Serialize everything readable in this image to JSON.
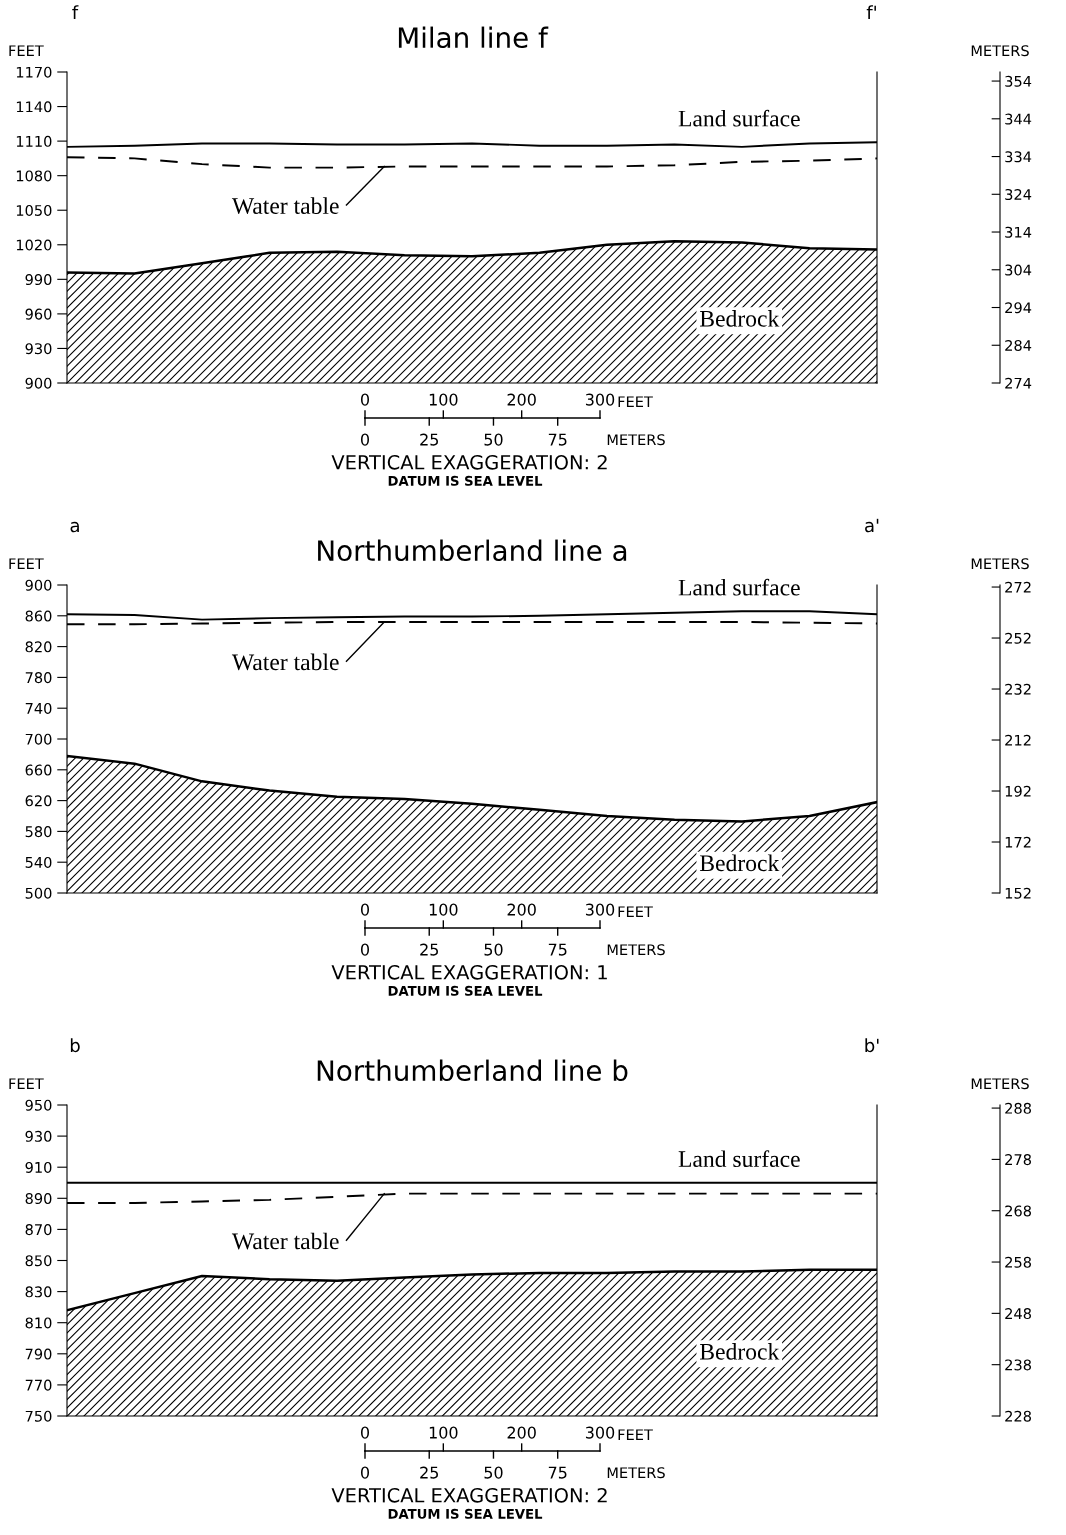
{
  "chart_data": [
    {
      "type": "line",
      "title": "Milan line f",
      "ylabel": "FEET",
      "y2label": "METERS",
      "categories": [
        null,
        null,
        null,
        null,
        null,
        null,
        null,
        null,
        null,
        null,
        null,
        null,
        null
      ],
      "series": [
        {
          "name": "Land surface",
          "type": "line",
          "color": "#000000",
          "line_style": "solid",
          "values": [
            1105,
            1106,
            1108,
            1108,
            1107,
            1107,
            1108,
            1106,
            1106,
            1107,
            1105,
            1108,
            1109
          ]
        },
        {
          "name": "Water table",
          "type": "line",
          "color": "#000000",
          "line_style": "dashed",
          "values": [
            1096,
            1095,
            1090,
            1087,
            1087,
            1088,
            1088,
            1088,
            1088,
            1089,
            1092,
            1093,
            1095
          ]
        },
        {
          "name": "Bedrock",
          "type": "area",
          "color": "#000000",
          "values": [
            996,
            995,
            1004,
            1013,
            1014,
            1011,
            1010,
            1013,
            1020,
            1023,
            1022,
            1017,
            1016
          ]
        }
      ],
      "ylim": [
        900,
        1170
      ],
      "yticks": [
        900,
        930,
        960,
        990,
        1020,
        1050,
        1080,
        1110,
        1140,
        1170
      ],
      "y2lim": [
        274,
        356.4
      ],
      "y2ticks": [
        274,
        284,
        294,
        304,
        314,
        324,
        334,
        344,
        354
      ],
      "annotations": [
        "f",
        "f'",
        "0",
        "100",
        "200",
        "300",
        "FEET",
        "0",
        "25",
        "50",
        "75",
        "METERS",
        "VERTICAL EXAGGERATION: 2",
        "DATUM IS SEA LEVEL"
      ]
    },
    {
      "type": "line",
      "title": "Northumberland line a",
      "ylabel": "FEET",
      "y2label": "METERS",
      "categories": [
        null,
        null,
        null,
        null,
        null,
        null,
        null,
        null,
        null,
        null,
        null,
        null,
        null
      ],
      "series": [
        {
          "name": "Land surface",
          "type": "line",
          "color": "#000000",
          "line_style": "solid",
          "values": [
            862,
            861,
            855,
            857,
            858,
            859,
            859,
            860,
            862,
            864,
            866,
            866,
            862
          ]
        },
        {
          "name": "Water table",
          "type": "line",
          "color": "#000000",
          "line_style": "dashed",
          "values": [
            849,
            849,
            850,
            851,
            852,
            852,
            852,
            852,
            852,
            852,
            852,
            851,
            850
          ]
        },
        {
          "name": "Bedrock",
          "type": "area",
          "color": "#000000",
          "values": [
            678,
            668,
            645,
            633,
            625,
            622,
            616,
            608,
            600,
            595,
            593,
            600,
            618
          ]
        }
      ],
      "ylim": [
        500,
        900
      ],
      "yticks": [
        500,
        540,
        580,
        620,
        660,
        700,
        740,
        780,
        820,
        860,
        900
      ],
      "y2lim": [
        152,
        272.8
      ],
      "y2ticks": [
        152,
        172,
        192,
        212,
        232,
        252,
        272
      ],
      "annotations": [
        "a",
        "a'",
        "0",
        "100",
        "200",
        "300",
        "FEET",
        "0",
        "25",
        "50",
        "75",
        "METERS",
        "VERTICAL EXAGGERATION: 1",
        "DATUM IS SEA LEVEL"
      ]
    },
    {
      "type": "line",
      "title": "Northumberland line b",
      "ylabel": "FEET",
      "y2label": "METERS",
      "categories": [
        null,
        null,
        null,
        null,
        null,
        null,
        null,
        null,
        null,
        null,
        null,
        null,
        null
      ],
      "series": [
        {
          "name": "Land surface",
          "type": "line",
          "color": "#000000",
          "line_style": "solid",
          "values": [
            900,
            900,
            900,
            900,
            900,
            900,
            900,
            900,
            900,
            900,
            900,
            900,
            900
          ]
        },
        {
          "name": "Water table",
          "type": "line",
          "color": "#000000",
          "line_style": "dashed",
          "values": [
            887,
            887,
            888,
            889,
            891,
            893,
            893,
            893,
            893,
            893,
            893,
            893,
            893
          ]
        },
        {
          "name": "Bedrock",
          "type": "area",
          "color": "#000000",
          "values": [
            818,
            829,
            840,
            838,
            837,
            839,
            841,
            842,
            842,
            843,
            843,
            844,
            844
          ]
        }
      ],
      "ylim": [
        750,
        950
      ],
      "yticks": [
        750,
        770,
        790,
        810,
        830,
        850,
        870,
        890,
        910,
        930,
        950
      ],
      "y2lim": [
        228,
        288.6
      ],
      "y2ticks": [
        228,
        238,
        248,
        258,
        268,
        278,
        288
      ],
      "annotations": [
        "b",
        "b'",
        "0",
        "100",
        "200",
        "300",
        "FEET",
        "0",
        "25",
        "50",
        "75",
        "METERS",
        "VERTICAL EXAGGERATION: 2",
        "DATUM IS SEA LEVEL"
      ]
    }
  ]
}
